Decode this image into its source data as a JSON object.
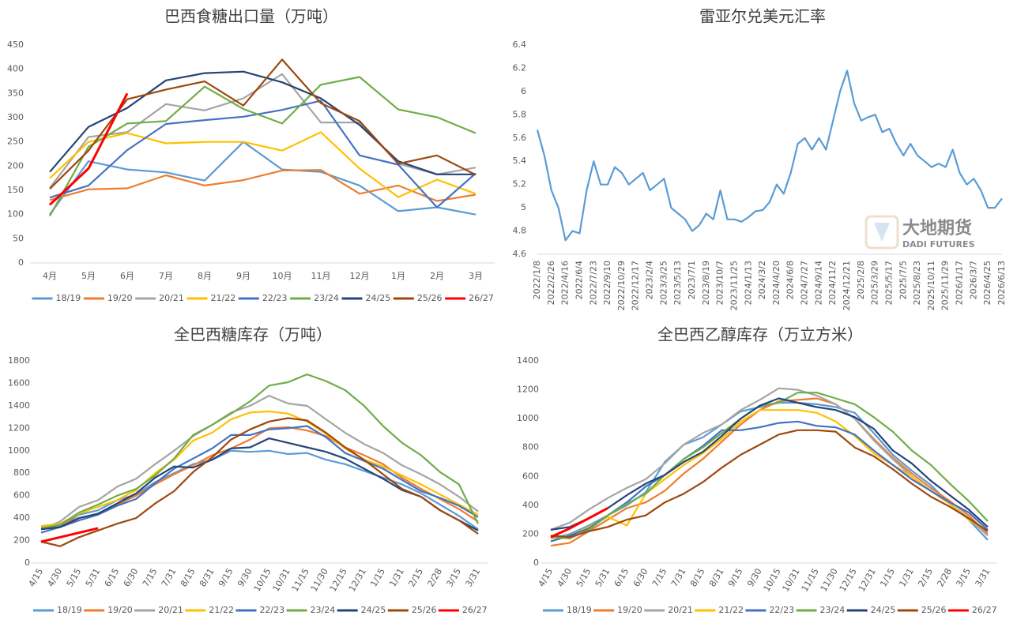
{
  "chart_data": [
    {
      "type": "line",
      "title": "巴西食糖出口量（万吨）",
      "categories": [
        "4月",
        "5月",
        "6月",
        "7月",
        "8月",
        "9月",
        "10月",
        "11月",
        "12月",
        "1月",
        "2月",
        "3月"
      ],
      "ylim": [
        0,
        450
      ],
      "yticks": [
        0,
        50,
        100,
        150,
        200,
        250,
        300,
        350,
        400,
        450
      ],
      "legend": "bottom",
      "series": [
        {
          "name": "18/19",
          "color": "#5b9bd5",
          "values": [
            100,
            210,
            193,
            187,
            170,
            250,
            193,
            188,
            160,
            107,
            115,
            100
          ]
        },
        {
          "name": "19/20",
          "color": "#ed7d31",
          "values": [
            130,
            152,
            154,
            181,
            160,
            171,
            191,
            192,
            143,
            160,
            128,
            141
          ]
        },
        {
          "name": "20/21",
          "color": "#a5a5a5",
          "values": [
            155,
            260,
            270,
            328,
            315,
            340,
            390,
            290,
            290,
            205,
            183,
            197
          ]
        },
        {
          "name": "21/22",
          "color": "#ffc000",
          "values": [
            175,
            250,
            268,
            247,
            250,
            250,
            232,
            270,
            195,
            136,
            172,
            143
          ]
        },
        {
          "name": "22/23",
          "color": "#4472c4",
          "values": [
            135,
            160,
            233,
            287,
            295,
            302,
            316,
            335,
            222,
            203,
            115,
            185
          ]
        },
        {
          "name": "23/24",
          "color": "#70ad47",
          "values": [
            97,
            240,
            288,
            293,
            364,
            318,
            288,
            368,
            384,
            317,
            301,
            268
          ]
        },
        {
          "name": "24/25",
          "color": "#264478",
          "values": [
            188,
            281,
            320,
            377,
            392,
            395,
            373,
            340,
            285,
            210,
            183,
            183
          ]
        },
        {
          "name": "25/26",
          "color": "#9e480e",
          "values": [
            153,
            232,
            338,
            358,
            375,
            325,
            420,
            330,
            293,
            205,
            222,
            182
          ]
        },
        {
          "name": "26/27",
          "color": "#ff0000",
          "values": [
            120,
            195,
            350,
            null,
            null,
            null,
            null,
            null,
            null,
            null,
            null,
            null
          ]
        }
      ]
    },
    {
      "type": "line",
      "title": "雷亚尔兑美元汇率",
      "categories": [
        "2022/1/8",
        null,
        "2022/2/26",
        null,
        "2022/4/16",
        null,
        "2022/6/4",
        null,
        "2022/7/23",
        null,
        "2022/9/10",
        null,
        "2022/10/29",
        null,
        "2022/12/17",
        null,
        "2023/2/4",
        null,
        "2023/3/25",
        null,
        "2023/5/13",
        null,
        "2023/7/1",
        null,
        "2023/8/19",
        null,
        "2023/10/7",
        null,
        "2023/11/25",
        null,
        "2024/1/13",
        null,
        "2024/3/2",
        null,
        "2024/4/20",
        null,
        "2024/6/8",
        null,
        "2024/7/27",
        null,
        "2024/9/14",
        null,
        "2024/11/2",
        null,
        "2024/12/21",
        null,
        "2025/2/8",
        null,
        "2025/3/29",
        null,
        "2025/5/17",
        null,
        "2025/7/5",
        null,
        "2025/8/23",
        null,
        "2025/10/11",
        null,
        "2025/11/29",
        null,
        "2026/1/17",
        null,
        "2026/3/7",
        null,
        "2026/4/25",
        null,
        "2026/6/13"
      ],
      "ylim": [
        4.6,
        6.4
      ],
      "yticks": [
        4.6,
        4.8,
        5,
        5.2,
        5.4,
        5.6,
        5.8,
        6,
        6.2,
        6.4
      ],
      "watermark": {
        "cn": "大地期货",
        "en": "DADI FUTURES"
      },
      "series": [
        {
          "name": null,
          "color": "#5b9bd5",
          "values": [
            5.67,
            5.45,
            5.15,
            5.0,
            4.72,
            4.8,
            4.78,
            5.15,
            5.4,
            5.2,
            5.2,
            5.35,
            5.3,
            5.2,
            5.25,
            5.3,
            5.15,
            5.2,
            5.25,
            5.0,
            4.95,
            4.9,
            4.8,
            4.85,
            4.95,
            4.9,
            5.15,
            4.9,
            4.9,
            4.88,
            4.92,
            4.97,
            4.98,
            5.05,
            5.2,
            5.12,
            5.3,
            5.55,
            5.6,
            5.5,
            5.6,
            5.5,
            5.75,
            6.0,
            6.18,
            5.9,
            5.75,
            5.78,
            5.8,
            5.65,
            5.68,
            5.55,
            5.45,
            5.55,
            5.45,
            5.4,
            5.35,
            5.38,
            5.35,
            5.5,
            5.3,
            5.2,
            5.25,
            5.15,
            5.0,
            5.0,
            5.08
          ]
        }
      ]
    },
    {
      "type": "line",
      "title": "全巴西糖库存（万吨）",
      "categories": [
        "4/15",
        "4/30",
        "5/15",
        "5/31",
        "6/15",
        "6/30",
        "7/15",
        "7/31",
        "8/15",
        "8/31",
        "9/15",
        "9/30",
        "10/15",
        "10/31",
        "11/15",
        "11/30",
        "12/15",
        "12/31",
        "1/15",
        "1/31",
        "2/15",
        "2/28",
        "3/15",
        "3/31"
      ],
      "ylim": [
        0,
        1800
      ],
      "yticks": [
        0,
        200,
        400,
        600,
        800,
        1000,
        1200,
        1400,
        1600,
        1800
      ],
      "legend": "bottom",
      "series": [
        {
          "name": "18/19",
          "color": "#5b9bd5",
          "values": [
            300,
            330,
            430,
            470,
            560,
            610,
            720,
            800,
            880,
            920,
            1000,
            990,
            1000,
            970,
            980,
            920,
            880,
            820,
            760,
            700,
            620,
            520,
            420,
            300
          ]
        },
        {
          "name": "19/20",
          "color": "#ed7d31",
          "values": [
            320,
            350,
            400,
            440,
            520,
            600,
            700,
            790,
            870,
            960,
            1020,
            1100,
            1200,
            1210,
            1180,
            1130,
            1030,
            960,
            880,
            760,
            660,
            570,
            480,
            370
          ]
        },
        {
          "name": "20/21",
          "color": "#a5a5a5",
          "values": [
            300,
            370,
            500,
            560,
            680,
            750,
            880,
            1000,
            1130,
            1230,
            1340,
            1400,
            1490,
            1420,
            1400,
            1280,
            1160,
            1060,
            980,
            870,
            790,
            700,
            590,
            460
          ]
        },
        {
          "name": "21/22",
          "color": "#ffc000",
          "values": [
            330,
            350,
            440,
            500,
            560,
            650,
            800,
            920,
            1090,
            1160,
            1280,
            1340,
            1350,
            1330,
            1260,
            1150,
            1020,
            920,
            860,
            780,
            700,
            610,
            520,
            430
          ]
        },
        {
          "name": "22/23",
          "color": "#4472c4",
          "values": [
            270,
            320,
            380,
            430,
            510,
            570,
            710,
            840,
            930,
            1020,
            1140,
            1140,
            1190,
            1200,
            1220,
            1120,
            980,
            910,
            840,
            740,
            640,
            580,
            510,
            410
          ]
        },
        {
          "name": "23/24",
          "color": "#70ad47",
          "values": [
            310,
            340,
            450,
            520,
            600,
            660,
            780,
            930,
            1140,
            1230,
            1330,
            1440,
            1580,
            1610,
            1680,
            1620,
            1540,
            1400,
            1220,
            1070,
            960,
            810,
            700,
            350
          ]
        },
        {
          "name": "24/25",
          "color": "#264478",
          "values": [
            300,
            320,
            400,
            440,
            530,
            620,
            760,
            860,
            850,
            920,
            1020,
            1030,
            1110,
            1070,
            1030,
            990,
            930,
            840,
            750,
            650,
            590,
            470,
            380,
            290
          ]
        },
        {
          "name": "25/26",
          "color": "#9e480e",
          "values": [
            190,
            150,
            230,
            290,
            350,
            400,
            530,
            640,
            810,
            940,
            1100,
            1190,
            1260,
            1290,
            1270,
            1160,
            1030,
            920,
            790,
            660,
            590,
            470,
            380,
            260
          ]
        },
        {
          "name": "26/27",
          "color": "#ff0000",
          "values": [
            190,
            230,
            270,
            310,
            null,
            null,
            null,
            null,
            null,
            null,
            null,
            null,
            null,
            null,
            null,
            null,
            null,
            null,
            null,
            null,
            null,
            null,
            null,
            null
          ]
        }
      ]
    },
    {
      "type": "line",
      "title": "全巴西乙醇库存（万立方米）",
      "categories": [
        "4/15",
        "4/30",
        "5/15",
        "5/31",
        "6/15",
        "6/30",
        "7/15",
        "7/31",
        "8/15",
        "8/31",
        "9/15",
        "9/30",
        "10/15",
        "10/31",
        "11/15",
        "11/30",
        "12/15",
        "12/31",
        "1/15",
        "1/31",
        "2/15",
        "2/28",
        "3/15",
        "3/31"
      ],
      "ylim": [
        0,
        1400
      ],
      "yticks": [
        0,
        200,
        400,
        600,
        800,
        1000,
        1200,
        1400
      ],
      "legend": "bottom",
      "series": [
        {
          "name": "18/19",
          "color": "#5b9bd5",
          "values": [
            170,
            200,
            260,
            330,
            400,
            490,
            700,
            820,
            870,
            960,
            1050,
            1080,
            1110,
            1110,
            1100,
            1080,
            1040,
            900,
            750,
            640,
            540,
            410,
            300,
            160
          ]
        },
        {
          "name": "19/20",
          "color": "#ed7d31",
          "values": [
            120,
            140,
            220,
            300,
            380,
            420,
            500,
            620,
            720,
            840,
            960,
            1060,
            1120,
            1130,
            1140,
            1100,
            1000,
            860,
            730,
            620,
            520,
            430,
            330,
            200
          ]
        },
        {
          "name": "20/21",
          "color": "#a5a5a5",
          "values": [
            230,
            280,
            370,
            450,
            520,
            580,
            690,
            820,
            900,
            960,
            1060,
            1130,
            1210,
            1200,
            1160,
            1100,
            1000,
            850,
            720,
            600,
            500,
            410,
            310,
            190
          ]
        },
        {
          "name": "21/22",
          "color": "#ffc000",
          "values": [
            170,
            190,
            250,
            320,
            260,
            480,
            580,
            680,
            760,
            860,
            980,
            1060,
            1060,
            1060,
            1040,
            980,
            880,
            760,
            680,
            600,
            500,
            410,
            300,
            220
          ]
        },
        {
          "name": "22/23",
          "color": "#4472c4",
          "values": [
            150,
            190,
            240,
            330,
            420,
            530,
            610,
            720,
            810,
            920,
            920,
            940,
            970,
            980,
            950,
            940,
            890,
            780,
            680,
            580,
            500,
            420,
            350,
            230
          ]
        },
        {
          "name": "23/24",
          "color": "#70ad47",
          "values": [
            180,
            170,
            230,
            330,
            410,
            480,
            610,
            720,
            800,
            900,
            1000,
            1090,
            1110,
            1180,
            1180,
            1140,
            1100,
            1010,
            910,
            780,
            680,
            550,
            430,
            290
          ]
        },
        {
          "name": "24/25",
          "color": "#264478",
          "values": [
            230,
            250,
            310,
            380,
            470,
            550,
            610,
            700,
            770,
            880,
            1000,
            1090,
            1140,
            1110,
            1080,
            1060,
            1010,
            930,
            780,
            690,
            570,
            470,
            370,
            250
          ]
        },
        {
          "name": "25/26",
          "color": "#9e480e",
          "values": [
            190,
            180,
            220,
            250,
            300,
            330,
            420,
            480,
            560,
            660,
            750,
            820,
            890,
            920,
            920,
            910,
            800,
            740,
            650,
            550,
            460,
            390,
            310,
            220
          ]
        },
        {
          "name": "26/27",
          "color": "#ff0000",
          "values": [
            180,
            240,
            310,
            380,
            null,
            null,
            null,
            null,
            null,
            null,
            null,
            null,
            null,
            null,
            null,
            null,
            null,
            null,
            null,
            null,
            null,
            null,
            null,
            null
          ]
        }
      ]
    }
  ]
}
